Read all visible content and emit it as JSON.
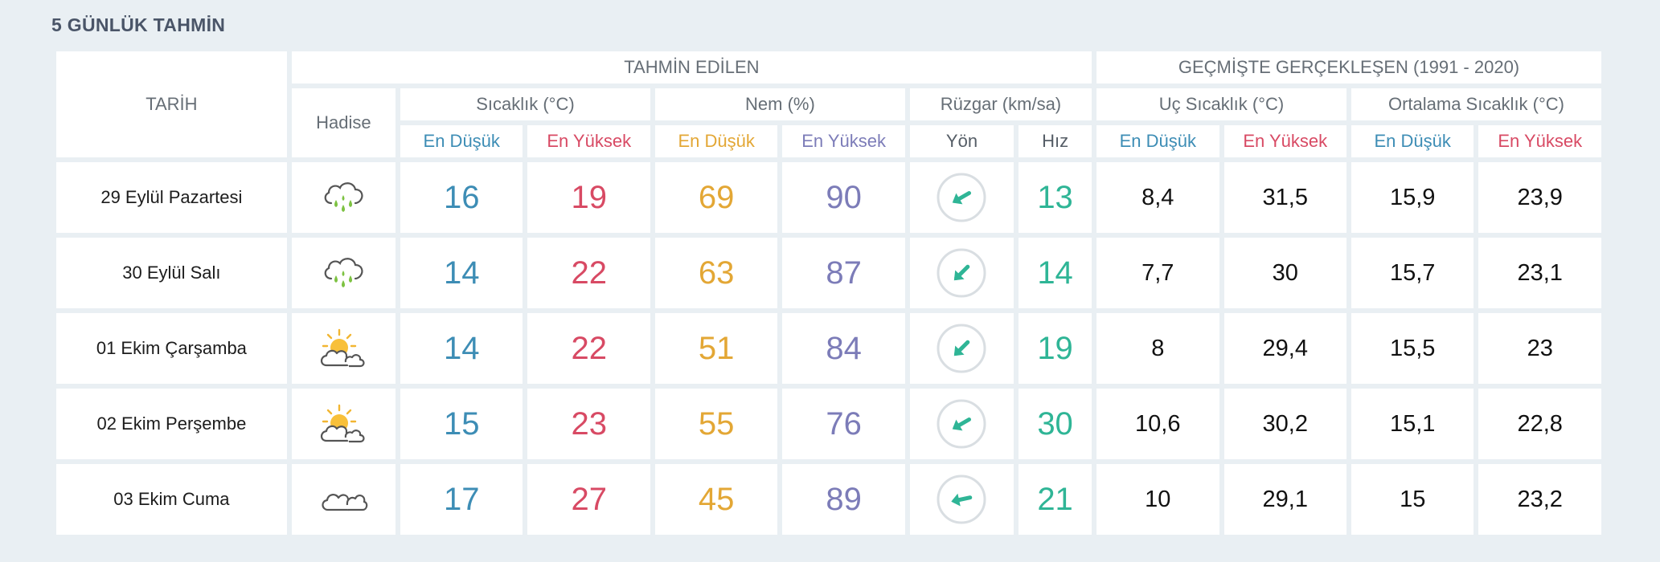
{
  "title": "5 GÜNLÜK TAHMİN",
  "headers": {
    "tarih": "TARİH",
    "tahmin_edilen": "TAHMİN EDİLEN",
    "gecmiste": "GEÇMİŞTE GERÇEKLEŞEN (1991 - 2020)",
    "hadise": "Hadise",
    "sicaklik": "Sıcaklık (°C)",
    "nem": "Nem (%)",
    "ruzgar": "Rüzgar (km/sa)",
    "uc_sicaklik": "Uç Sıcaklık (°C)",
    "ortalama_sicaklik": "Ortalama Sıcaklık (°C)",
    "en_dusuk": "En Düşük",
    "en_yuksek": "En Yüksek",
    "yon": "Yön",
    "hiz": "Hız"
  },
  "colors": {
    "min": "#3d8db5",
    "max": "#d84a64",
    "humidity_min": "#e3a735",
    "humidity_max": "#7c7cb8",
    "wind_speed": "#2fb596",
    "wind_arrow": "#2fb596"
  },
  "days": [
    {
      "date": "29 Eylül Pazartesi",
      "icon": "rain-cloud-icon",
      "temp_min": "16",
      "temp_max": "19",
      "hum_min": "69",
      "hum_max": "90",
      "wind_dir_icon": "wind-direction-southwest-icon",
      "wind_speed": "13",
      "uc_min": "8,4",
      "uc_max": "31,5",
      "ort_min": "15,9",
      "ort_max": "23,9"
    },
    {
      "date": "30 Eylül Salı",
      "icon": "rain-cloud-icon",
      "temp_min": "14",
      "temp_max": "22",
      "hum_min": "63",
      "hum_max": "87",
      "wind_dir_icon": "wind-direction-southwest-icon",
      "wind_speed": "14",
      "uc_min": "7,7",
      "uc_max": "30",
      "ort_min": "15,7",
      "ort_max": "23,1"
    },
    {
      "date": "01 Ekim Çarşamba",
      "icon": "partly-cloudy-icon",
      "temp_min": "14",
      "temp_max": "22",
      "hum_min": "51",
      "hum_max": "84",
      "wind_dir_icon": "wind-direction-southwest-icon",
      "wind_speed": "19",
      "uc_min": "8",
      "uc_max": "29,4",
      "ort_min": "15,5",
      "ort_max": "23"
    },
    {
      "date": "02 Ekim Perşembe",
      "icon": "partly-cloudy-icon",
      "temp_min": "15",
      "temp_max": "23",
      "hum_min": "55",
      "hum_max": "76",
      "wind_dir_icon": "wind-direction-southwest-icon",
      "wind_speed": "30",
      "uc_min": "10,6",
      "uc_max": "30,2",
      "ort_min": "15,1",
      "ort_max": "22,8"
    },
    {
      "date": "03 Ekim Cuma",
      "icon": "cloud-icon",
      "temp_min": "17",
      "temp_max": "27",
      "hum_min": "45",
      "hum_max": "89",
      "wind_dir_icon": "wind-direction-west-icon",
      "wind_speed": "21",
      "uc_min": "10",
      "uc_max": "29,1",
      "ort_min": "15",
      "ort_max": "23,2"
    }
  ]
}
